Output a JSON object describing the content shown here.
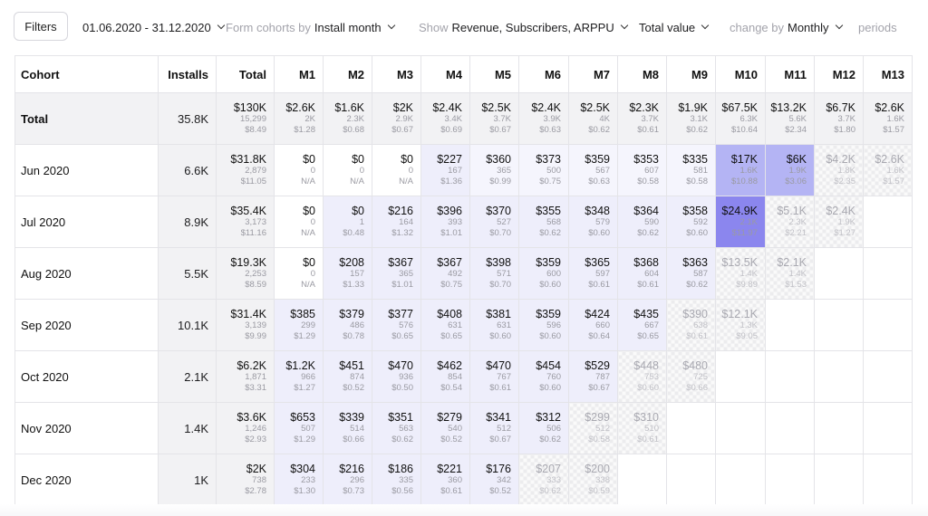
{
  "toolbar": {
    "filters_label": "Filters",
    "date_range": "01.06.2020 - 31.12.2020",
    "form_cohorts_label": "Form cohorts by",
    "form_cohorts_value": "Install month",
    "show_label": "Show",
    "show_value": "Revenue, Subscribers, ARPPU",
    "aggregation_value": "Total value",
    "change_by_label": "change by",
    "change_by_value": "Monthly",
    "periods_label": "periods"
  },
  "colors": {
    "highlight_strong": "#8b86ee",
    "highlight_medium": "#b4b4f4",
    "highlight_light": "#eeeefb",
    "summary_gray": "#f2f2f4"
  },
  "table": {
    "headers": {
      "cohort": "Cohort",
      "installs": "Installs",
      "total": "Total",
      "months": [
        "M1",
        "M2",
        "M3",
        "M4",
        "M5",
        "M6",
        "M7",
        "M8",
        "M9",
        "M10",
        "M11",
        "M12",
        "M13"
      ]
    },
    "rows": [
      {
        "cohort": "Total",
        "installs": "35.8K",
        "total": [
          "$130K",
          "15,299",
          "$8.49"
        ],
        "cells": [
          [
            "$2.6K",
            "2K",
            "$1.28"
          ],
          [
            "$1.6K",
            "2.3K",
            "$0.68"
          ],
          [
            "$2K",
            "2.9K",
            "$0.67"
          ],
          [
            "$2.4K",
            "3.4K",
            "$0.69"
          ],
          [
            "$2.5K",
            "3.7K",
            "$0.67"
          ],
          [
            "$2.4K",
            "3.9K",
            "$0.63"
          ],
          [
            "$2.5K",
            "4K",
            "$0.62"
          ],
          [
            "$2.3K",
            "3.7K",
            "$0.61"
          ],
          [
            "$1.9K",
            "3.1K",
            "$0.62"
          ],
          [
            "$67.5K",
            "6.3K",
            "$10.64"
          ],
          [
            "$13.2K",
            "5.6K",
            "$2.34"
          ],
          [
            "$6.7K",
            "3.7K",
            "$1.80"
          ],
          [
            "$2.6K",
            "1.6K",
            "$1.57"
          ]
        ]
      },
      {
        "cohort": "Jun 2020",
        "installs": "6.6K",
        "total": [
          "$31.8K",
          "2,879",
          "$11.05"
        ],
        "cells": [
          [
            "$0",
            "0",
            "N/A"
          ],
          [
            "$0",
            "0",
            "N/A"
          ],
          [
            "$0",
            "0",
            "N/A"
          ],
          [
            "$227",
            "167",
            "$1.36"
          ],
          [
            "$360",
            "365",
            "$0.99"
          ],
          [
            "$373",
            "500",
            "$0.75"
          ],
          [
            "$359",
            "567",
            "$0.63"
          ],
          [
            "$353",
            "607",
            "$0.58"
          ],
          [
            "$335",
            "581",
            "$0.58"
          ],
          [
            "$17K",
            "1.6K",
            "$10.88"
          ],
          [
            "$6K",
            "1.9K",
            "$3.06"
          ],
          [
            "$4.2K",
            "1.8K",
            "$2.35"
          ],
          [
            "$2.6K",
            "1.6K",
            "$1.57"
          ]
        ]
      },
      {
        "cohort": "Jul 2020",
        "installs": "8.9K",
        "total": [
          "$35.4K",
          "3,173",
          "$11.16"
        ],
        "cells": [
          [
            "$0",
            "0",
            "N/A"
          ],
          [
            "$0",
            "1",
            "$0.48"
          ],
          [
            "$216",
            "164",
            "$1.32"
          ],
          [
            "$396",
            "393",
            "$1.01"
          ],
          [
            "$370",
            "527",
            "$0.70"
          ],
          [
            "$355",
            "568",
            "$0.62"
          ],
          [
            "$348",
            "579",
            "$0.60"
          ],
          [
            "$364",
            "590",
            "$0.62"
          ],
          [
            "$358",
            "592",
            "$0.60"
          ],
          [
            "$24.9K",
            "2.1K",
            "$11.97"
          ],
          [
            "$5.1K",
            "2.3K",
            "$2.21"
          ],
          [
            "$2.4K",
            "1.9K",
            "$1.27"
          ]
        ]
      },
      {
        "cohort": "Aug 2020",
        "installs": "5.5K",
        "total": [
          "$19.3K",
          "2,253",
          "$8.59"
        ],
        "cells": [
          [
            "$0",
            "0",
            "N/A"
          ],
          [
            "$208",
            "157",
            "$1.33"
          ],
          [
            "$367",
            "365",
            "$1.01"
          ],
          [
            "$367",
            "492",
            "$0.75"
          ],
          [
            "$398",
            "571",
            "$0.70"
          ],
          [
            "$359",
            "600",
            "$0.60"
          ],
          [
            "$365",
            "597",
            "$0.61"
          ],
          [
            "$368",
            "604",
            "$0.61"
          ],
          [
            "$363",
            "587",
            "$0.62"
          ],
          [
            "$13.5K",
            "1.4K",
            "$9.89"
          ],
          [
            "$2.1K",
            "1.4K",
            "$1.53"
          ]
        ]
      },
      {
        "cohort": "Sep 2020",
        "installs": "10.1K",
        "total": [
          "$31.4K",
          "3,139",
          "$9.99"
        ],
        "cells": [
          [
            "$385",
            "299",
            "$1.29"
          ],
          [
            "$379",
            "486",
            "$0.78"
          ],
          [
            "$377",
            "576",
            "$0.65"
          ],
          [
            "$408",
            "631",
            "$0.65"
          ],
          [
            "$381",
            "631",
            "$0.60"
          ],
          [
            "$359",
            "596",
            "$0.60"
          ],
          [
            "$424",
            "660",
            "$0.64"
          ],
          [
            "$435",
            "667",
            "$0.65"
          ],
          [
            "$390",
            "638",
            "$0.61"
          ],
          [
            "$12.1K",
            "1.3K",
            "$9.05"
          ]
        ]
      },
      {
        "cohort": "Oct 2020",
        "installs": "2.1K",
        "total": [
          "$6.2K",
          "1,871",
          "$3.31"
        ],
        "cells": [
          [
            "$1.2K",
            "966",
            "$1.27"
          ],
          [
            "$451",
            "874",
            "$0.52"
          ],
          [
            "$470",
            "936",
            "$0.50"
          ],
          [
            "$462",
            "854",
            "$0.54"
          ],
          [
            "$470",
            "767",
            "$0.61"
          ],
          [
            "$454",
            "760",
            "$0.60"
          ],
          [
            "$529",
            "787",
            "$0.67"
          ],
          [
            "$448",
            "753",
            "$0.60"
          ],
          [
            "$480",
            "725",
            "$0.66"
          ]
        ]
      },
      {
        "cohort": "Nov 2020",
        "installs": "1.4K",
        "total": [
          "$3.6K",
          "1,246",
          "$2.93"
        ],
        "cells": [
          [
            "$653",
            "507",
            "$1.29"
          ],
          [
            "$339",
            "514",
            "$0.66"
          ],
          [
            "$351",
            "563",
            "$0.62"
          ],
          [
            "$279",
            "540",
            "$0.52"
          ],
          [
            "$341",
            "512",
            "$0.67"
          ],
          [
            "$312",
            "506",
            "$0.62"
          ],
          [
            "$299",
            "512",
            "$0.58"
          ],
          [
            "$310",
            "510",
            "$0.61"
          ]
        ]
      },
      {
        "cohort": "Dec 2020",
        "installs": "1K",
        "total": [
          "$2K",
          "738",
          "$2.78"
        ],
        "cells": [
          [
            "$304",
            "233",
            "$1.30"
          ],
          [
            "$216",
            "296",
            "$0.73"
          ],
          [
            "$186",
            "335",
            "$0.56"
          ],
          [
            "$221",
            "360",
            "$0.61"
          ],
          [
            "$176",
            "342",
            "$0.52"
          ],
          [
            "$207",
            "333",
            "$0.62"
          ],
          [
            "$200",
            "338",
            "$0.59"
          ]
        ]
      }
    ]
  }
}
